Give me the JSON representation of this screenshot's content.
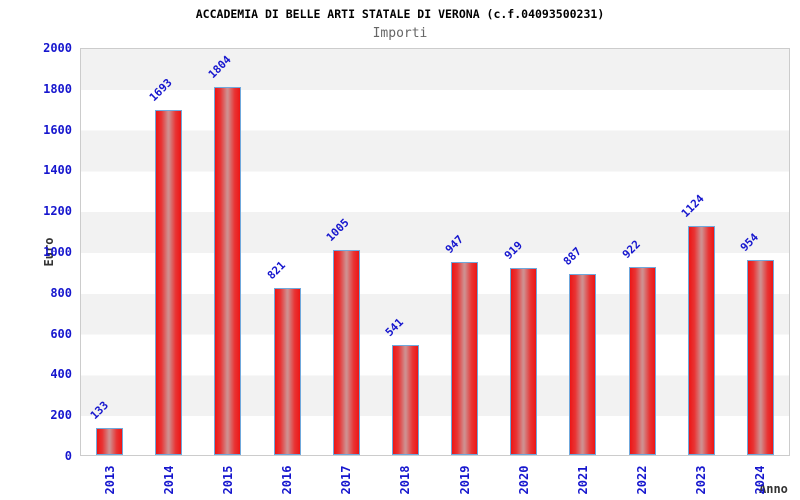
{
  "chart_data": {
    "type": "bar",
    "title": "ACCADEMIA DI BELLE ARTI STATALE DI VERONA (c.f.04093500231)",
    "subtitle": "Importi",
    "xlabel": "Anno",
    "ylabel": "Euro",
    "categories": [
      "2013",
      "2014",
      "2015",
      "2016",
      "2017",
      "2018",
      "2019",
      "2020",
      "2021",
      "2022",
      "2023",
      "2024"
    ],
    "values": [
      133,
      1693,
      1804,
      821,
      1005,
      541,
      947,
      919,
      887,
      922,
      1124,
      954
    ],
    "ylim": [
      0,
      2000
    ],
    "ytick_step": 200,
    "grid": "alternating-horizontal-bands",
    "legend": "none",
    "colors": {
      "tick_label_blue": "#1616ce",
      "bar_red": "#ed1515",
      "bar_highlight": "#cf8f8f",
      "bar_border": "#6fa8dc",
      "band_gray": "#f2f2f2",
      "plot_border": "#cccccc",
      "title": "#000000",
      "subtitle": "#666666",
      "axis_title": "#333333"
    }
  }
}
